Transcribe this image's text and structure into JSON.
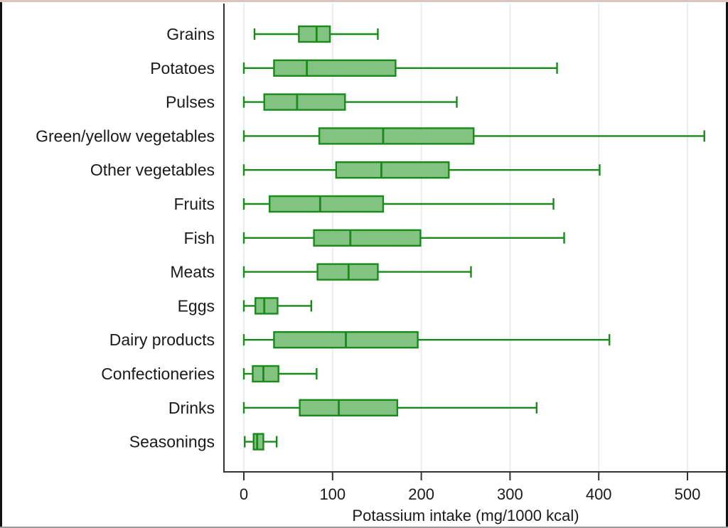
{
  "chart_data": {
    "type": "boxplot",
    "orientation": "horizontal",
    "title": "",
    "xlabel": "Potassium intake (mg/1000 kcal)",
    "ylabel": "",
    "xlim": [
      -22,
      541
    ],
    "xticks": [
      0,
      100,
      200,
      300,
      400,
      500
    ],
    "xtick_labels": [
      "0",
      "100",
      "200",
      "300",
      "400",
      "500"
    ],
    "grid": "vertical",
    "legend": "none",
    "colors": {
      "box_fill": "#82c382",
      "box_stroke": "#1a8a1a",
      "grid": "#e6eef2",
      "axis": "#333333"
    },
    "categories": [
      "Grains",
      "Potatoes",
      "Pulses",
      "Green/yellow vegetables",
      "Other vegetables",
      "Fruits",
      "Fish",
      "Meats",
      "Eggs",
      "Dairy products",
      "Confectioneries",
      "Drinks",
      "Seasonings"
    ],
    "series": [
      {
        "name": "Grains",
        "whisker_low": 12,
        "q1": 62,
        "median": 82,
        "q3": 97,
        "whisker_high": 151
      },
      {
        "name": "Potatoes",
        "whisker_low": 0,
        "q1": 34,
        "median": 71,
        "q3": 171,
        "whisker_high": 353
      },
      {
        "name": "Pulses",
        "whisker_low": 0,
        "q1": 23,
        "median": 60,
        "q3": 114,
        "whisker_high": 240
      },
      {
        "name": "Green/yellow vegetables",
        "whisker_low": 0,
        "q1": 85,
        "median": 157,
        "q3": 259,
        "whisker_high": 519
      },
      {
        "name": "Other vegetables",
        "whisker_low": 0,
        "q1": 104,
        "median": 155,
        "q3": 231,
        "whisker_high": 401
      },
      {
        "name": "Fruits",
        "whisker_low": 0,
        "q1": 29,
        "median": 86,
        "q3": 157,
        "whisker_high": 349
      },
      {
        "name": "Fish",
        "whisker_low": 0,
        "q1": 79,
        "median": 120,
        "q3": 199,
        "whisker_high": 361
      },
      {
        "name": "Meats",
        "whisker_low": 0,
        "q1": 83,
        "median": 118,
        "q3": 151,
        "whisker_high": 256
      },
      {
        "name": "Eggs",
        "whisker_low": 0,
        "q1": 13,
        "median": 23,
        "q3": 38,
        "whisker_high": 76
      },
      {
        "name": "Dairy products",
        "whisker_low": 0,
        "q1": 34,
        "median": 115,
        "q3": 196,
        "whisker_high": 412
      },
      {
        "name": "Confectioneries",
        "whisker_low": 0,
        "q1": 10,
        "median": 22,
        "q3": 39,
        "whisker_high": 82
      },
      {
        "name": "Drinks",
        "whisker_low": 0,
        "q1": 63,
        "median": 107,
        "q3": 173,
        "whisker_high": 330
      },
      {
        "name": "Seasonings",
        "whisker_low": 1,
        "q1": 11,
        "median": 15,
        "q3": 22,
        "whisker_high": 37
      }
    ]
  }
}
